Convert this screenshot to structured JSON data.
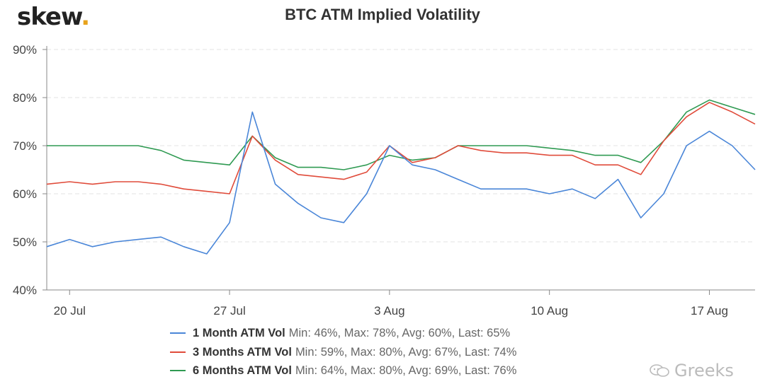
{
  "logo": {
    "text": "skew",
    "dot": "."
  },
  "watermark": {
    "icon": "wechat-icon",
    "text": "Greeks"
  },
  "chart_data": {
    "type": "line",
    "title": "BTC ATM Implied Volatility",
    "xlabel": "",
    "ylabel": "",
    "ylim": [
      40,
      90
    ],
    "yticks": [
      40,
      50,
      60,
      70,
      80,
      90
    ],
    "ytick_labels": [
      "40%",
      "50%",
      "60%",
      "70%",
      "80%",
      "90%"
    ],
    "xlim": [
      "2020-07-19",
      "2020-08-19"
    ],
    "xticks": [
      "2020-07-20",
      "2020-07-27",
      "2020-08-03",
      "2020-08-10",
      "2020-08-17"
    ],
    "xtick_labels": [
      "20 Jul",
      "27 Jul",
      "3 Aug",
      "10 Aug",
      "17 Aug"
    ],
    "grid": true,
    "legend": "bottom",
    "x": [
      "2020-07-19",
      "2020-07-20",
      "2020-07-21",
      "2020-07-22",
      "2020-07-23",
      "2020-07-24",
      "2020-07-25",
      "2020-07-26",
      "2020-07-27",
      "2020-07-28",
      "2020-07-29",
      "2020-07-30",
      "2020-07-31",
      "2020-08-01",
      "2020-08-02",
      "2020-08-03",
      "2020-08-04",
      "2020-08-05",
      "2020-08-06",
      "2020-08-07",
      "2020-08-08",
      "2020-08-09",
      "2020-08-10",
      "2020-08-11",
      "2020-08-12",
      "2020-08-13",
      "2020-08-14",
      "2020-08-15",
      "2020-08-16",
      "2020-08-17",
      "2020-08-18",
      "2020-08-19"
    ],
    "series": [
      {
        "name": "1 Month ATM Vol",
        "color": "#4a86d8",
        "stats": "Min: 46%, Max: 78%, Avg: 60%, Last: 65%",
        "values": [
          49,
          50.5,
          49,
          50,
          50.5,
          51,
          49,
          47.5,
          54,
          77,
          62,
          58,
          55,
          54,
          60,
          70,
          66,
          65,
          63,
          61,
          61,
          61,
          60,
          61,
          59,
          63,
          55,
          60,
          70,
          73,
          70,
          65
        ]
      },
      {
        "name": "3 Months ATM Vol",
        "color": "#e04b3a",
        "stats": "Min: 59%, Max: 80%, Avg: 67%, Last: 74%",
        "values": [
          62,
          62.5,
          62,
          62.5,
          62.5,
          62,
          61,
          60.5,
          60,
          72,
          67,
          64,
          63.5,
          63,
          64.5,
          70,
          66.5,
          67.5,
          70,
          69,
          68.5,
          68.5,
          68,
          68,
          66,
          66,
          64,
          71,
          76,
          79,
          77,
          74.5
        ]
      },
      {
        "name": "6 Months ATM Vol",
        "color": "#2f9a52",
        "stats": "Min: 64%, Max: 80%, Avg: 69%, Last: 76%",
        "values": [
          70,
          70,
          70,
          70,
          70,
          69,
          67,
          66.5,
          66,
          72,
          67.5,
          65.5,
          65.5,
          65,
          66,
          68,
          67,
          67.5,
          70,
          70,
          70,
          70,
          69.5,
          69,
          68,
          68,
          66.5,
          71,
          77,
          79.5,
          78,
          76.5
        ]
      }
    ]
  }
}
